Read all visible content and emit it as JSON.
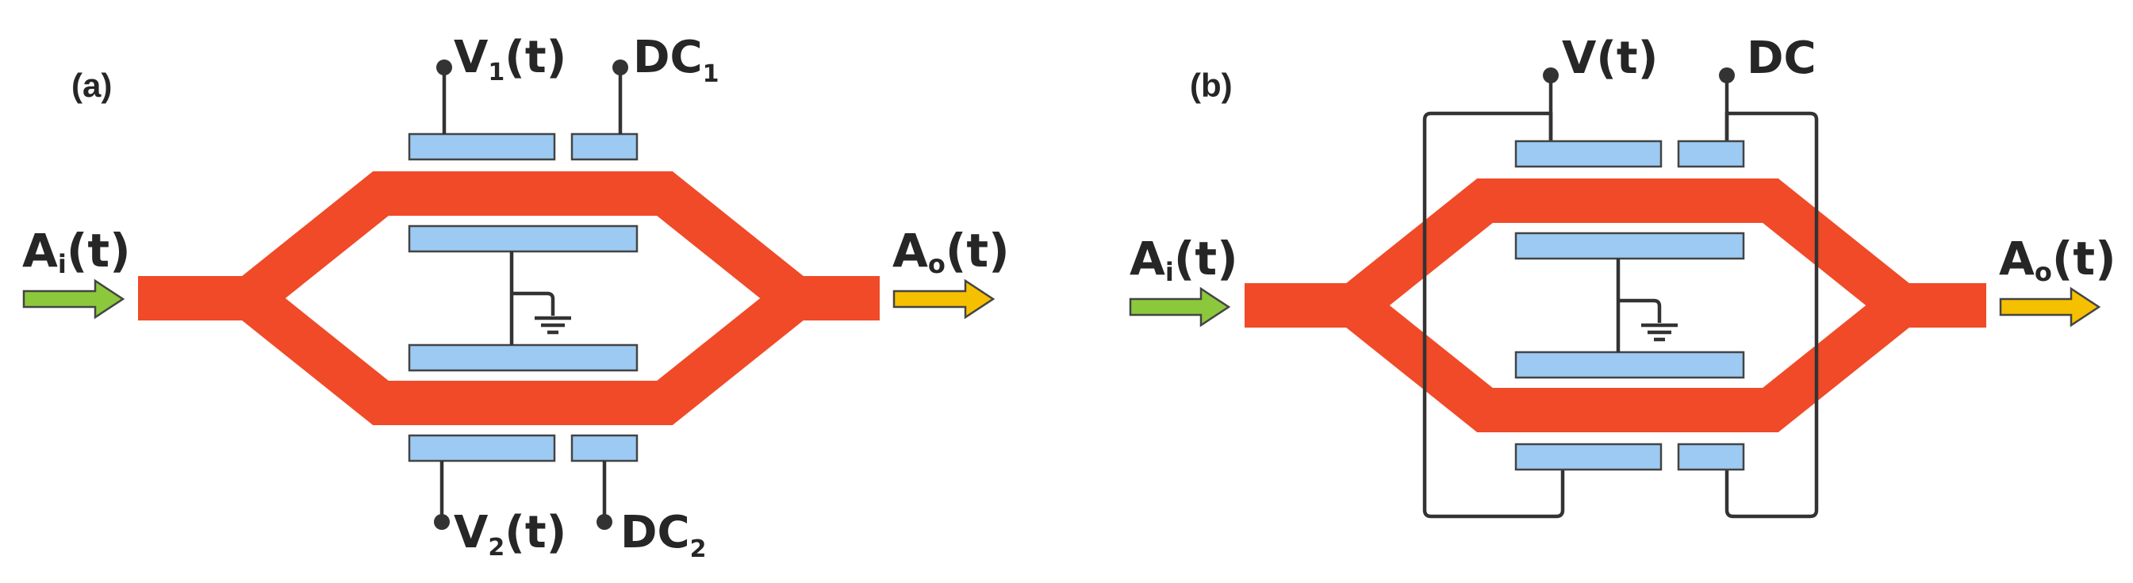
{
  "panel_a": {
    "tag": "(a)",
    "input": {
      "main": "A",
      "sub": "i",
      "arg": "(t)"
    },
    "output": {
      "main": "A",
      "sub": "o",
      "arg": "(t)"
    },
    "v_top": {
      "main": "V",
      "sub": "1",
      "arg": "(t)"
    },
    "dc_top": {
      "main": "DC",
      "sub": "1"
    },
    "v_bottom": {
      "main": "V",
      "sub": "2",
      "arg": "(t)"
    },
    "dc_bottom": {
      "main": "DC",
      "sub": "2"
    }
  },
  "panel_b": {
    "tag": "(b)",
    "input": {
      "main": "A",
      "sub": "i",
      "arg": "(t)"
    },
    "output": {
      "main": "A",
      "sub": "o",
      "arg": "(t)"
    },
    "v": "V(t)",
    "dc": "DC"
  },
  "colors": {
    "waveguide": "#f04a28",
    "electrode": "#9ccaf2",
    "input_arrow": "#8cc83c",
    "output_arrow": "#f5c000",
    "wire": "#333333"
  }
}
